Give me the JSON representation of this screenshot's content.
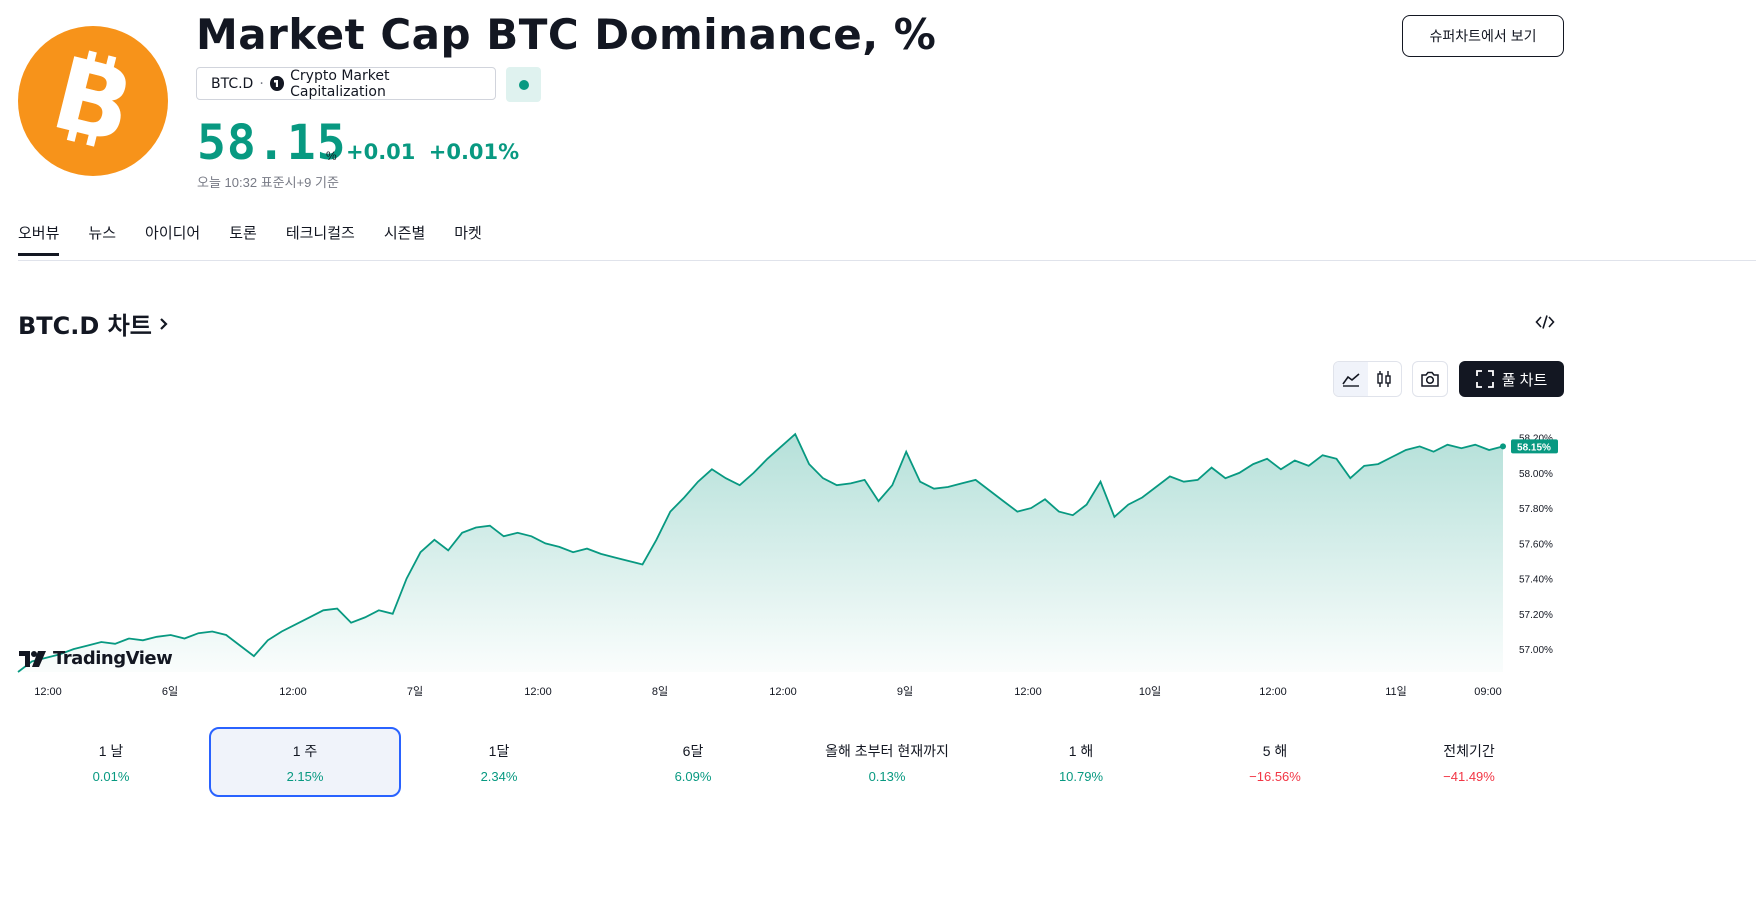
{
  "header": {
    "title": "Market Cap BTC Dominance, %",
    "symbol": "BTC.D",
    "separator": "·",
    "source": "Crypto Market Capitalization",
    "price": "58.15",
    "unit": "%",
    "change": "+0.01",
    "change_pct": "+0.01%",
    "timestamp": "오늘 10:32 표준시+9 기준",
    "supercharts_button": "슈퍼차트에서 보기"
  },
  "tabs": [
    {
      "label": "오버뷰",
      "active": true
    },
    {
      "label": "뉴스"
    },
    {
      "label": "아이디어"
    },
    {
      "label": "토론"
    },
    {
      "label": "테크니컬즈"
    },
    {
      "label": "시즌별"
    },
    {
      "label": "마켓"
    }
  ],
  "chart_section": {
    "heading": "BTC.D 차트",
    "full_chart_button": "풀 차트",
    "brand": "TradingView",
    "current_label": "58.15%"
  },
  "chart_data": {
    "type": "area",
    "color": "#089981",
    "y_ticks": [
      "58.20%",
      "58.00%",
      "57.80%",
      "57.60%",
      "57.40%",
      "57.20%",
      "57.00%"
    ],
    "x_ticks": [
      "12:00",
      "6일",
      "12:00",
      "7일",
      "12:00",
      "8일",
      "12:00",
      "9일",
      "12:00",
      "10일",
      "12:00",
      "11일",
      "09:00"
    ],
    "ylim": [
      56.87,
      58.3
    ],
    "series": [
      {
        "values": [
          56.87,
          56.93,
          56.95,
          56.97,
          57.0,
          57.02,
          57.04,
          57.03,
          57.06,
          57.05,
          57.07,
          57.08,
          57.06,
          57.09,
          57.1,
          57.08,
          57.02,
          56.96,
          57.05,
          57.1,
          57.14,
          57.18,
          57.22,
          57.23,
          57.15,
          57.18,
          57.22,
          57.2,
          57.4,
          57.55,
          57.62,
          57.56,
          57.66,
          57.69,
          57.7,
          57.64,
          57.66,
          57.64,
          57.6,
          57.58,
          57.55,
          57.57,
          57.54,
          57.52,
          57.5,
          57.48,
          57.62,
          57.78,
          57.86,
          57.95,
          58.02,
          57.97,
          57.93,
          58.0,
          58.08,
          58.15,
          58.22,
          58.05,
          57.97,
          57.93,
          57.94,
          57.96,
          57.84,
          57.93,
          58.12,
          57.95,
          57.91,
          57.92,
          57.94,
          57.96,
          57.9,
          57.84,
          57.78,
          57.8,
          57.85,
          57.78,
          57.76,
          57.82,
          57.95,
          57.75,
          57.82,
          57.86,
          57.92,
          57.98,
          57.95,
          57.96,
          58.03,
          57.97,
          58.0,
          58.05,
          58.08,
          58.02,
          58.07,
          58.04,
          58.1,
          58.08,
          57.97,
          58.04,
          58.05,
          58.09,
          58.13,
          58.15,
          58.12,
          58.16,
          58.14,
          58.16,
          58.13,
          58.15
        ]
      }
    ]
  },
  "periods": [
    {
      "label": "1 날",
      "value": "0.01%",
      "dir": "pos"
    },
    {
      "label": "1 주",
      "value": "2.15%",
      "dir": "pos",
      "selected": true
    },
    {
      "label": "1달",
      "value": "2.34%",
      "dir": "pos"
    },
    {
      "label": "6달",
      "value": "6.09%",
      "dir": "pos"
    },
    {
      "label": "올해 초부터 현재까지",
      "value": "0.13%",
      "dir": "pos"
    },
    {
      "label": "1 해",
      "value": "10.79%",
      "dir": "pos"
    },
    {
      "label": "5 해",
      "value": "−16.56%",
      "dir": "neg"
    },
    {
      "label": "전체기간",
      "value": "−41.49%",
      "dir": "neg"
    }
  ]
}
